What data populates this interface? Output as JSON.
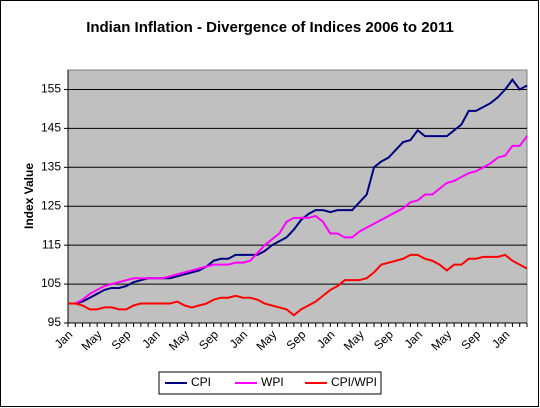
{
  "chart_data": {
    "type": "line",
    "title": "Indian Inflation - Divergence of Indices 2006 to 2011",
    "y_label": "Index Value",
    "categories": [
      "Jan",
      null,
      null,
      null,
      "May",
      null,
      null,
      null,
      "Sep",
      null,
      null,
      null,
      "Jan",
      null,
      null,
      null,
      "May",
      null,
      null,
      null,
      "Sep",
      null,
      null,
      null,
      "Jan",
      null,
      null,
      null,
      "May",
      null,
      null,
      null,
      "Sep",
      null,
      null,
      null,
      "Jan",
      null,
      null,
      null,
      "May",
      null,
      null,
      null,
      "Sep",
      null,
      null,
      null,
      "Jan",
      null,
      null,
      null,
      "May",
      null,
      null,
      null,
      "Sep",
      null,
      null,
      null,
      "Jan",
      null,
      null,
      null
    ],
    "series": [
      {
        "name": "CPI",
        "color": "#000080",
        "values": [
          100,
          100,
          100.5,
          101.5,
          102.5,
          103.5,
          104,
          104,
          104.5,
          105.5,
          106,
          106.5,
          106.5,
          106.5,
          106.5,
          107,
          107.5,
          108,
          108.5,
          109.5,
          111,
          111.5,
          111.5,
          112.5,
          112.5,
          112.5,
          112.5,
          113.5,
          115,
          116,
          117,
          119,
          121.5,
          123,
          124,
          124,
          123.5,
          124,
          124,
          124,
          126,
          128,
          135,
          136.5,
          137.5,
          139.5,
          141.5,
          142,
          144.5,
          143,
          143,
          143,
          143,
          144.5,
          146,
          149.5,
          149.5,
          150.5,
          151.5,
          153,
          155,
          157.5,
          155,
          156
        ]
      },
      {
        "name": "WPI",
        "color": "#ff00ff",
        "values": [
          100,
          100,
          101,
          102.5,
          103.5,
          104.5,
          105,
          105.5,
          106,
          106.5,
          106.5,
          106.5,
          106.5,
          106.5,
          107,
          107.5,
          108,
          108.5,
          109,
          109.5,
          110,
          110,
          110,
          110.5,
          110.5,
          111,
          113,
          115,
          116.5,
          118,
          121,
          122,
          122,
          122,
          122.5,
          121,
          118,
          118,
          117,
          117,
          118.5,
          119.5,
          120.5,
          121.5,
          122.5,
          123.5,
          124.5,
          126,
          126.5,
          128,
          128,
          129.5,
          131,
          131.5,
          132.5,
          133.5,
          134,
          135,
          136,
          137.5,
          138,
          140.5,
          140.5,
          143
        ]
      },
      {
        "name": "CPI/WPI",
        "color": "#ff0000",
        "values": [
          100,
          100,
          99.5,
          98.5,
          98.5,
          99,
          99,
          98.5,
          98.5,
          99.5,
          100,
          100,
          100,
          100,
          100,
          100.5,
          99.5,
          99,
          99.5,
          100,
          101,
          101.5,
          101.5,
          102,
          101.5,
          101.5,
          101,
          100,
          99.5,
          99,
          98.5,
          97,
          98.5,
          99.5,
          100.5,
          102,
          103.5,
          104.5,
          106,
          106,
          106,
          106.5,
          108,
          110,
          110.5,
          111,
          111.5,
          112.5,
          112.5,
          111.5,
          111,
          110,
          108.5,
          110,
          110,
          111.5,
          111.5,
          112,
          112,
          112,
          112.5,
          111,
          110,
          109
        ]
      }
    ],
    "ylim": [
      95,
      160
    ],
    "yticks": [
      95,
      105,
      115,
      125,
      135,
      145,
      155
    ],
    "grid": true,
    "legend": "bottom",
    "plot_background": "#c0c0c0"
  }
}
